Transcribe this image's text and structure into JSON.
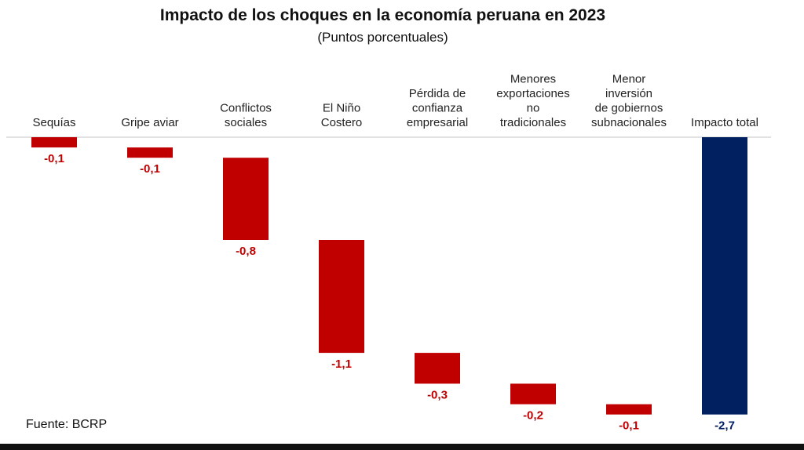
{
  "chart_data": {
    "type": "waterfall",
    "title": "Impacto de los choques en la economía peruana en 2023",
    "subtitle": "(Puntos porcentuales)",
    "categories": [
      [
        "Sequías"
      ],
      [
        "Gripe aviar"
      ],
      [
        "Conflictos",
        "sociales"
      ],
      [
        "El Niño",
        "Costero"
      ],
      [
        "Pérdida de",
        "confianza",
        "empresarial"
      ],
      [
        "Menores",
        "exportaciones",
        "no",
        "tradicionales"
      ],
      [
        "Menor",
        "inversión",
        "de gobiernos",
        "subnacionales"
      ],
      [
        "Impacto total"
      ]
    ],
    "values": [
      -0.1,
      -0.1,
      -0.8,
      -1.1,
      -0.3,
      -0.2,
      -0.1,
      -2.7
    ],
    "value_labels": [
      "-0,1",
      "-0,1",
      "-0,8",
      "-1,1",
      "-0,3",
      "-0,2",
      "-0,1",
      "-2,7"
    ],
    "colors": {
      "component": "#c00000",
      "total": "#002060",
      "label_component": "#c00000",
      "label_total": "#002060"
    },
    "ylim": [
      -2.7,
      0
    ],
    "grid": false,
    "legend": "none"
  },
  "source": "Fuente: BCRP"
}
